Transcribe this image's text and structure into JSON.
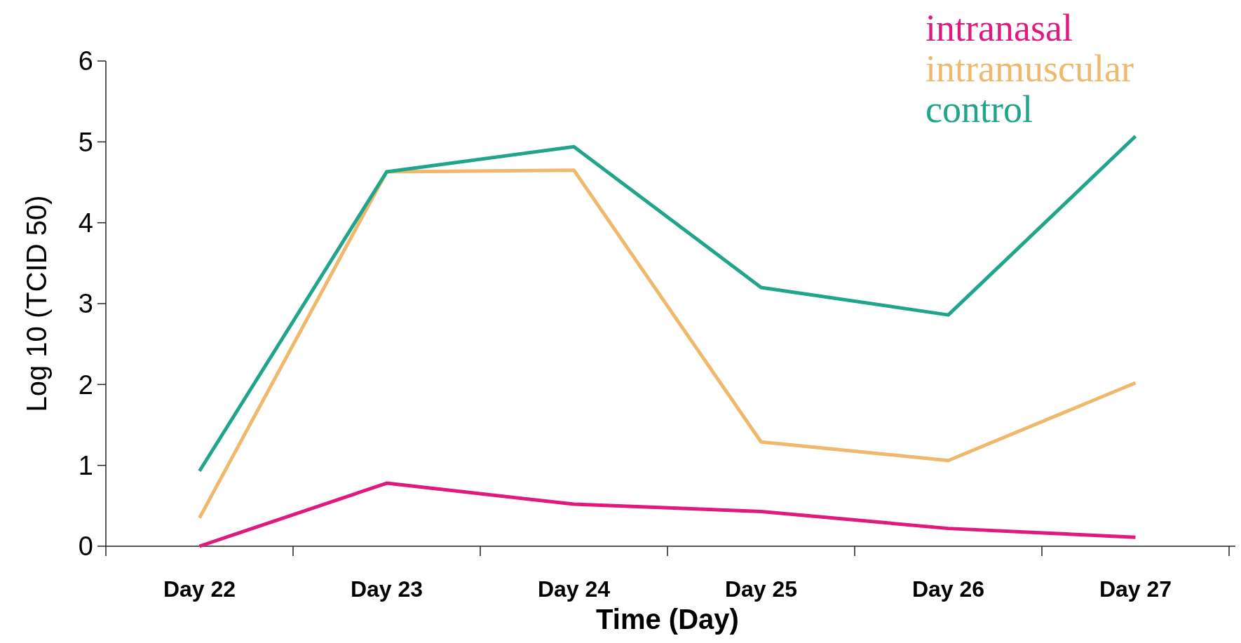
{
  "chart_data": {
    "type": "line",
    "xlabel": "Time (Day)",
    "ylabel": "Log 10 (TCID 50)",
    "categories": [
      "Day 22",
      "Day 23",
      "Day 24",
      "Day 25",
      "Day 26",
      "Day 27"
    ],
    "series": [
      {
        "name": "intranasal",
        "color": "#e0197e",
        "values": [
          0,
          0.78,
          0.52,
          0.43,
          0.22,
          0.11
        ]
      },
      {
        "name": "intramuscular",
        "color": "#f0b86c",
        "values": [
          0.35,
          4.63,
          4.65,
          1.29,
          1.06,
          2.02
        ]
      },
      {
        "name": "control",
        "color": "#20a48a",
        "values": [
          0.93,
          4.63,
          4.94,
          3.2,
          2.86,
          5.07
        ]
      }
    ],
    "ylim": [
      0,
      6
    ],
    "yticks": [
      0,
      1,
      2,
      3,
      4,
      5,
      6
    ],
    "grid": false,
    "legend": "top right",
    "marker": "none",
    "line_style": "solid"
  }
}
